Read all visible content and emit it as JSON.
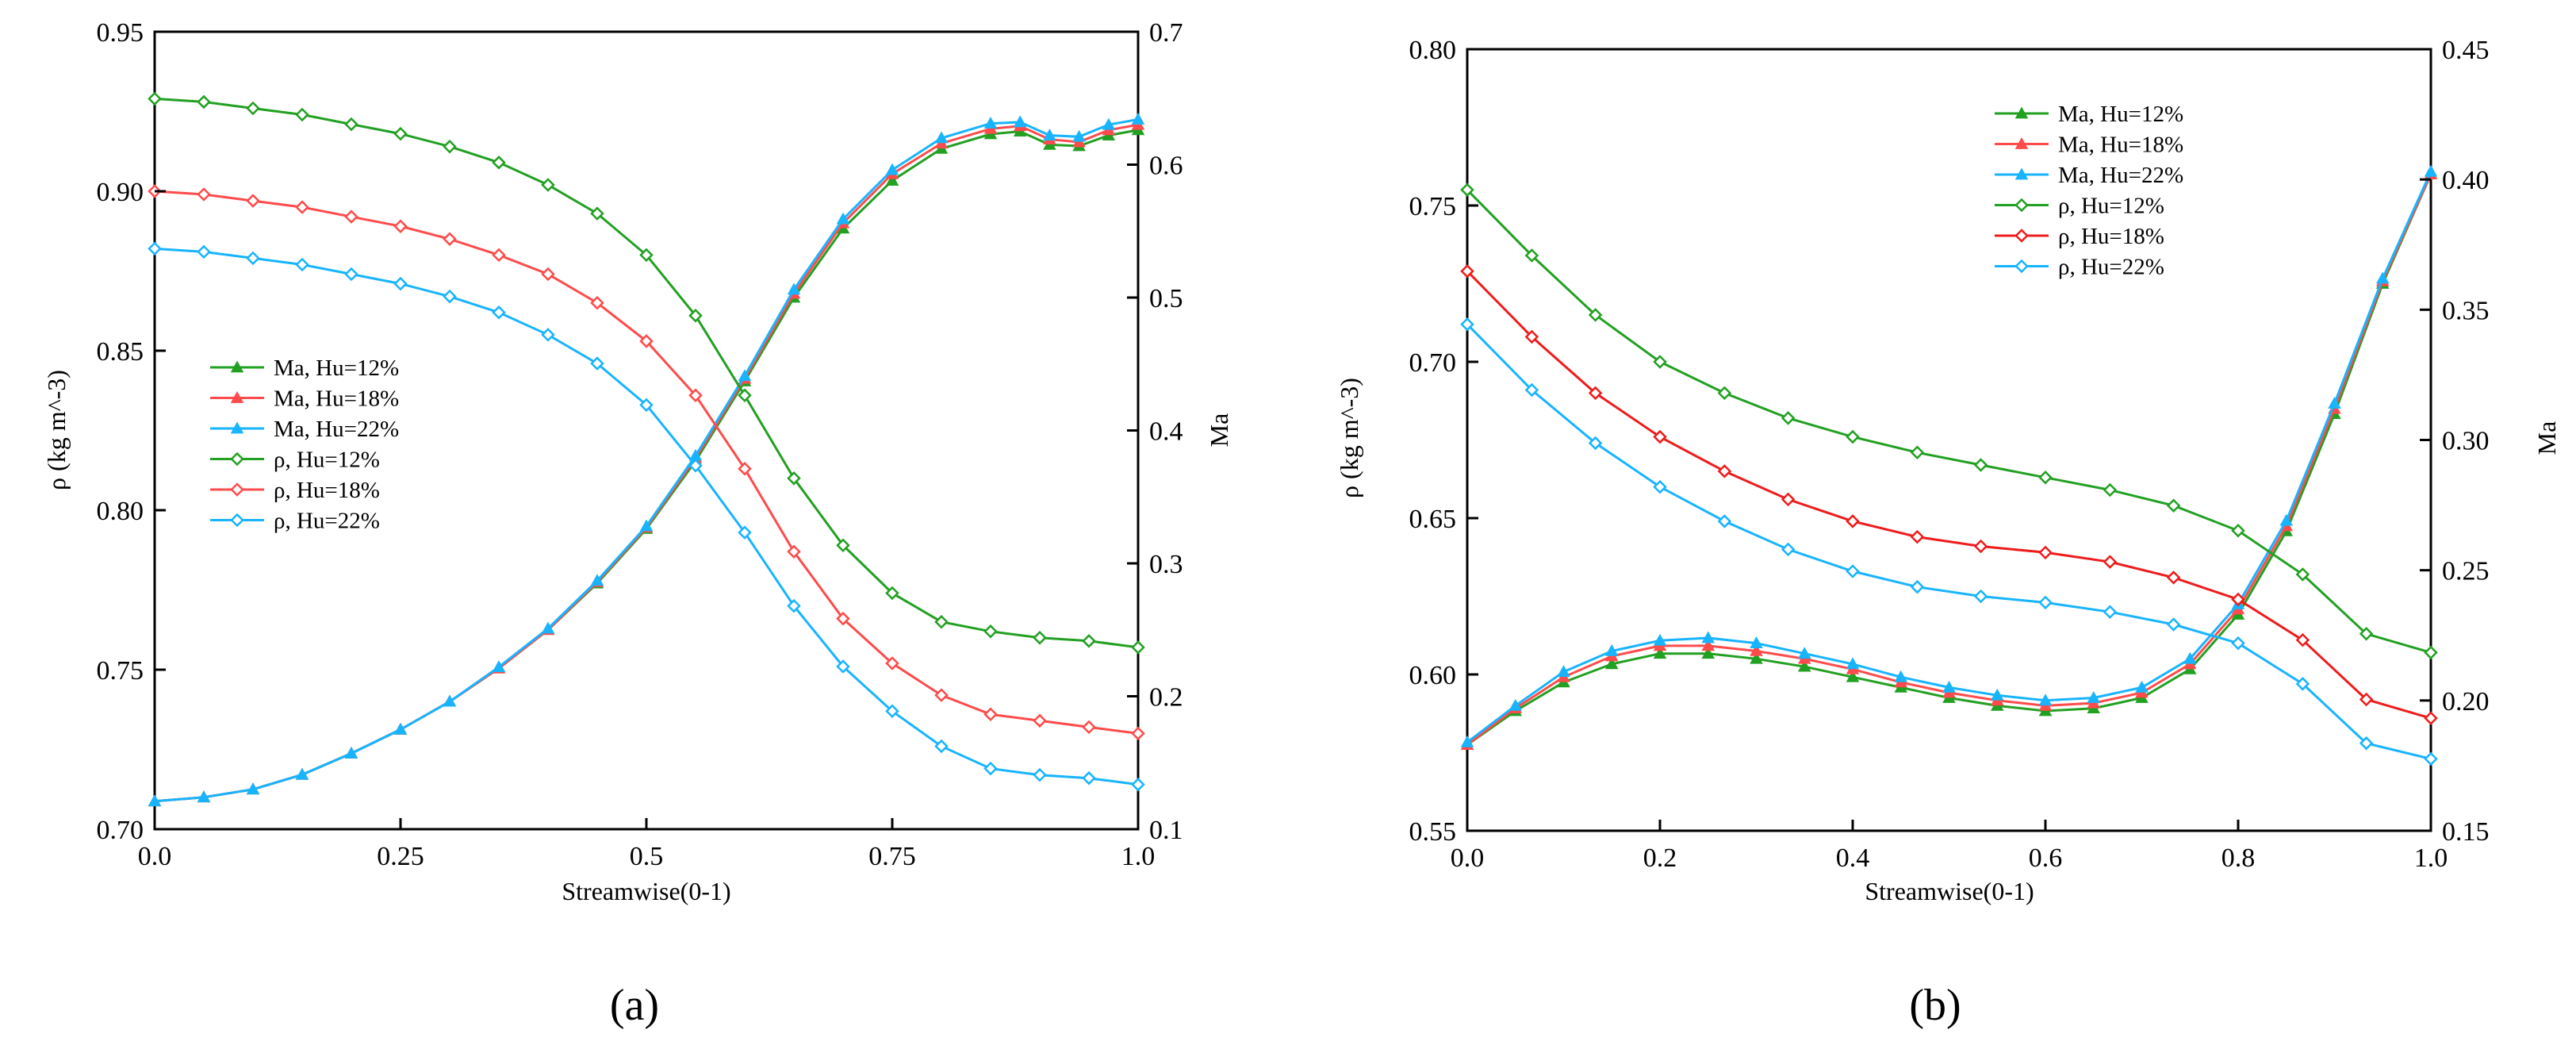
{
  "colors": {
    "hu12": "#22a022",
    "hu18": "#ff4b4b",
    "hu22": "#18b4ff",
    "hu18_rho_b": "#ee1c1c"
  },
  "chart_data": [
    {
      "type": "line",
      "panel_label": "(a)",
      "xlabel": "Streamwise(0-1)",
      "ylabel": "ρ (kg m^-3)",
      "y2label": "Ma",
      "xlim": [
        0,
        1
      ],
      "ylim": [
        0.7,
        0.95
      ],
      "y2lim": [
        0.1,
        0.7
      ],
      "xticks": [
        "0.0",
        "0.25",
        "0.5",
        "0.75",
        "1.0"
      ],
      "yticks": [
        "0.70",
        "0.75",
        "0.80",
        "0.85",
        "0.90",
        "0.95"
      ],
      "y2ticks": [
        "0.1",
        "0.2",
        "0.3",
        "0.4",
        "0.5",
        "0.6",
        "0.7"
      ],
      "legend_position": "center-left",
      "series": [
        {
          "name": "Ma, Hu=12%",
          "axis": "right",
          "marker": "triangle",
          "color": "#22a022",
          "x": [
            0,
            0.05,
            0.1,
            0.15,
            0.2,
            0.25,
            0.3,
            0.35,
            0.4,
            0.45,
            0.5,
            0.55,
            0.6,
            0.65,
            0.7,
            0.75,
            0.8,
            0.85,
            0.88,
            0.91,
            0.94,
            0.97,
            1.0
          ],
          "y": [
            0.121,
            0.124,
            0.13,
            0.141,
            0.157,
            0.175,
            0.196,
            0.221,
            0.25,
            0.285,
            0.326,
            0.377,
            0.437,
            0.5,
            0.552,
            0.588,
            0.612,
            0.623,
            0.625,
            0.615,
            0.614,
            0.622,
            0.626
          ]
        },
        {
          "name": "Ma, Hu=18%",
          "axis": "right",
          "marker": "triangle",
          "color": "#ff4b4b",
          "x": [
            0,
            0.05,
            0.1,
            0.15,
            0.2,
            0.25,
            0.3,
            0.35,
            0.4,
            0.45,
            0.5,
            0.55,
            0.6,
            0.65,
            0.7,
            0.75,
            0.8,
            0.85,
            0.88,
            0.91,
            0.94,
            0.97,
            1.0
          ],
          "y": [
            0.121,
            0.124,
            0.13,
            0.141,
            0.157,
            0.175,
            0.196,
            0.221,
            0.25,
            0.286,
            0.327,
            0.379,
            0.439,
            0.503,
            0.556,
            0.593,
            0.616,
            0.627,
            0.629,
            0.619,
            0.617,
            0.626,
            0.63
          ]
        },
        {
          "name": "Ma, Hu=22%",
          "axis": "right",
          "marker": "triangle",
          "color": "#18b4ff",
          "x": [
            0,
            0.05,
            0.1,
            0.15,
            0.2,
            0.25,
            0.3,
            0.35,
            0.4,
            0.45,
            0.5,
            0.55,
            0.6,
            0.65,
            0.7,
            0.75,
            0.8,
            0.85,
            0.88,
            0.91,
            0.94,
            0.97,
            1.0
          ],
          "y": [
            0.121,
            0.124,
            0.13,
            0.141,
            0.157,
            0.175,
            0.196,
            0.222,
            0.251,
            0.287,
            0.328,
            0.381,
            0.441,
            0.506,
            0.559,
            0.596,
            0.62,
            0.631,
            0.632,
            0.622,
            0.621,
            0.63,
            0.634
          ]
        },
        {
          "name": "ρ, Hu=12%",
          "axis": "left",
          "marker": "diamond",
          "color": "#22a022",
          "x": [
            0,
            0.05,
            0.1,
            0.15,
            0.2,
            0.25,
            0.3,
            0.35,
            0.4,
            0.45,
            0.5,
            0.55,
            0.6,
            0.65,
            0.7,
            0.75,
            0.8,
            0.85,
            0.9,
            0.95,
            1.0
          ],
          "y": [
            0.929,
            0.928,
            0.926,
            0.924,
            0.921,
            0.918,
            0.914,
            0.909,
            0.902,
            0.893,
            0.88,
            0.861,
            0.836,
            0.81,
            0.789,
            0.774,
            0.765,
            0.762,
            0.76,
            0.759,
            0.757
          ]
        },
        {
          "name": "ρ, Hu=18%",
          "axis": "left",
          "marker": "diamond",
          "color": "#ff4b4b",
          "x": [
            0,
            0.05,
            0.1,
            0.15,
            0.2,
            0.25,
            0.3,
            0.35,
            0.4,
            0.45,
            0.5,
            0.55,
            0.6,
            0.65,
            0.7,
            0.75,
            0.8,
            0.85,
            0.9,
            0.95,
            1.0
          ],
          "y": [
            0.9,
            0.899,
            0.897,
            0.895,
            0.892,
            0.889,
            0.885,
            0.88,
            0.874,
            0.865,
            0.853,
            0.836,
            0.813,
            0.787,
            0.766,
            0.752,
            0.742,
            0.736,
            0.734,
            0.732,
            0.73
          ]
        },
        {
          "name": "ρ, Hu=22%",
          "axis": "left",
          "marker": "diamond",
          "color": "#18b4ff",
          "x": [
            0,
            0.05,
            0.1,
            0.15,
            0.2,
            0.25,
            0.3,
            0.35,
            0.4,
            0.45,
            0.5,
            0.55,
            0.6,
            0.65,
            0.7,
            0.75,
            0.8,
            0.85,
            0.9,
            0.95,
            1.0
          ],
          "y": [
            0.882,
            0.881,
            0.879,
            0.877,
            0.874,
            0.871,
            0.867,
            0.862,
            0.855,
            0.846,
            0.833,
            0.814,
            0.793,
            0.77,
            0.751,
            0.737,
            0.726,
            0.719,
            0.717,
            0.716,
            0.714
          ]
        }
      ]
    },
    {
      "type": "line",
      "panel_label": "(b)",
      "xlabel": "Streamwise(0-1)",
      "ylabel": "ρ (kg m^-3)",
      "y2label": "Ma",
      "xlim": [
        0,
        1
      ],
      "ylim": [
        0.55,
        0.8
      ],
      "y2lim": [
        0.15,
        0.45
      ],
      "xticks": [
        "0.0",
        "0.2",
        "0.4",
        "0.6",
        "0.8",
        "1.0"
      ],
      "yticks": [
        "0.55",
        "0.60",
        "0.65",
        "0.70",
        "0.75",
        "0.80"
      ],
      "y2ticks": [
        "0.15",
        "0.20",
        "0.25",
        "0.30",
        "0.35",
        "0.40",
        "0.45"
      ],
      "legend_position": "top-center",
      "series": [
        {
          "name": "Ma, Hu=12%",
          "axis": "right",
          "marker": "triangle",
          "color": "#22a022",
          "x": [
            0,
            0.05,
            0.1,
            0.15,
            0.2,
            0.25,
            0.3,
            0.35,
            0.4,
            0.45,
            0.5,
            0.55,
            0.6,
            0.65,
            0.7,
            0.75,
            0.8,
            0.85,
            0.9,
            0.95,
            1.0
          ],
          "y": [
            0.183,
            0.196,
            0.207,
            0.214,
            0.218,
            0.218,
            0.216,
            0.213,
            0.209,
            0.205,
            0.201,
            0.198,
            0.196,
            0.197,
            0.201,
            0.212,
            0.233,
            0.265,
            0.31,
            0.36,
            0.402
          ]
        },
        {
          "name": "Ma, Hu=18%",
          "axis": "right",
          "marker": "triangle",
          "color": "#ff4b4b",
          "x": [
            0,
            0.05,
            0.1,
            0.15,
            0.2,
            0.25,
            0.3,
            0.35,
            0.4,
            0.45,
            0.5,
            0.55,
            0.6,
            0.65,
            0.7,
            0.75,
            0.8,
            0.85,
            0.9,
            0.95,
            1.0
          ],
          "y": [
            0.183,
            0.197,
            0.209,
            0.217,
            0.221,
            0.221,
            0.219,
            0.216,
            0.212,
            0.207,
            0.203,
            0.2,
            0.198,
            0.199,
            0.203,
            0.214,
            0.235,
            0.267,
            0.312,
            0.361,
            0.402
          ]
        },
        {
          "name": "Ma, Hu=22%",
          "axis": "right",
          "marker": "triangle",
          "color": "#18b4ff",
          "x": [
            0,
            0.05,
            0.1,
            0.15,
            0.2,
            0.25,
            0.3,
            0.35,
            0.4,
            0.45,
            0.5,
            0.55,
            0.6,
            0.65,
            0.7,
            0.75,
            0.8,
            0.85,
            0.9,
            0.95,
            1.0
          ],
          "y": [
            0.184,
            0.198,
            0.211,
            0.219,
            0.223,
            0.224,
            0.222,
            0.218,
            0.214,
            0.209,
            0.205,
            0.202,
            0.2,
            0.201,
            0.205,
            0.216,
            0.237,
            0.269,
            0.314,
            0.362,
            0.403
          ]
        },
        {
          "name": "ρ, Hu=12%",
          "axis": "left",
          "marker": "diamond",
          "color": "#22a022",
          "x": [
            0,
            0.067,
            0.133,
            0.2,
            0.267,
            0.333,
            0.4,
            0.467,
            0.533,
            0.6,
            0.667,
            0.733,
            0.8,
            0.867,
            0.933,
            1.0
          ],
          "y": [
            0.755,
            0.734,
            0.715,
            0.7,
            0.69,
            0.682,
            0.676,
            0.671,
            0.667,
            0.663,
            0.659,
            0.654,
            0.646,
            0.632,
            0.613,
            0.607
          ]
        },
        {
          "name": "ρ, Hu=18%",
          "axis": "left",
          "marker": "diamond",
          "color": "#ee1c1c",
          "x": [
            0,
            0.067,
            0.133,
            0.2,
            0.267,
            0.333,
            0.4,
            0.467,
            0.533,
            0.6,
            0.667,
            0.733,
            0.8,
            0.867,
            0.933,
            1.0
          ],
          "y": [
            0.729,
            0.708,
            0.69,
            0.676,
            0.665,
            0.656,
            0.649,
            0.644,
            0.641,
            0.639,
            0.636,
            0.631,
            0.624,
            0.611,
            0.592,
            0.586
          ]
        },
        {
          "name": "ρ, Hu=22%",
          "axis": "left",
          "marker": "diamond",
          "color": "#18b4ff",
          "x": [
            0,
            0.067,
            0.133,
            0.2,
            0.267,
            0.333,
            0.4,
            0.467,
            0.533,
            0.6,
            0.667,
            0.733,
            0.8,
            0.867,
            0.933,
            1.0
          ],
          "y": [
            0.712,
            0.691,
            0.674,
            0.66,
            0.649,
            0.64,
            0.633,
            0.628,
            0.625,
            0.623,
            0.62,
            0.616,
            0.61,
            0.597,
            0.578,
            0.573
          ]
        }
      ]
    }
  ]
}
